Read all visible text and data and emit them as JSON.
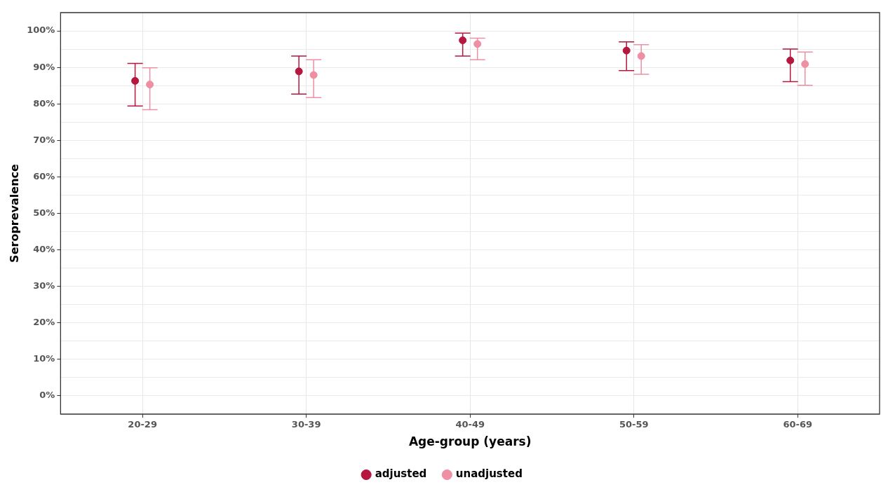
{
  "chart_data": {
    "type": "scatter",
    "xlabel": "Age-group (years)",
    "ylabel": "Seroprevalence",
    "categories": [
      "20-29",
      "30-39",
      "40-49",
      "50-59",
      "60-69"
    ],
    "series": [
      {
        "name": "adjusted",
        "color": "#b5173f",
        "values": [
          86.3,
          88.9,
          97.4,
          94.6,
          91.9
        ],
        "errors": [
          [
            79.4,
            91.1
          ],
          [
            82.7,
            93.1
          ],
          [
            93.1,
            99.4
          ],
          [
            89.1,
            97.0
          ],
          [
            86.1,
            95.0
          ]
        ]
      },
      {
        "name": "unadjusted",
        "color": "#ee8fa3",
        "values": [
          85.3,
          87.9,
          96.4,
          93.1,
          90.9
        ],
        "errors": [
          [
            78.4,
            89.9
          ],
          [
            81.7,
            92.1
          ],
          [
            92.1,
            98.0
          ],
          [
            88.1,
            96.2
          ],
          [
            85.1,
            94.2
          ]
        ]
      }
    ],
    "ylim": [
      -5,
      105
    ],
    "yticks": [
      {
        "value": 0,
        "label": "0%"
      },
      {
        "value": 5,
        "label": null
      },
      {
        "value": 10,
        "label": "10%"
      },
      {
        "value": 15,
        "label": null
      },
      {
        "value": 20,
        "label": "20%"
      },
      {
        "value": 25,
        "label": null
      },
      {
        "value": 30,
        "label": "30%"
      },
      {
        "value": 35,
        "label": null
      },
      {
        "value": 40,
        "label": "40%"
      },
      {
        "value": 45,
        "label": null
      },
      {
        "value": 50,
        "label": "50%"
      },
      {
        "value": 55,
        "label": null
      },
      {
        "value": 60,
        "label": "60%"
      },
      {
        "value": 65,
        "label": null
      },
      {
        "value": 70,
        "label": "70%"
      },
      {
        "value": 75,
        "label": null
      },
      {
        "value": 80,
        "label": "80%"
      },
      {
        "value": 85,
        "label": null
      },
      {
        "value": 90,
        "label": "90%"
      },
      {
        "value": 95,
        "label": null
      },
      {
        "value": 100,
        "label": "100%"
      }
    ],
    "grid": true,
    "legend": "bottom",
    "marker": "circle"
  }
}
